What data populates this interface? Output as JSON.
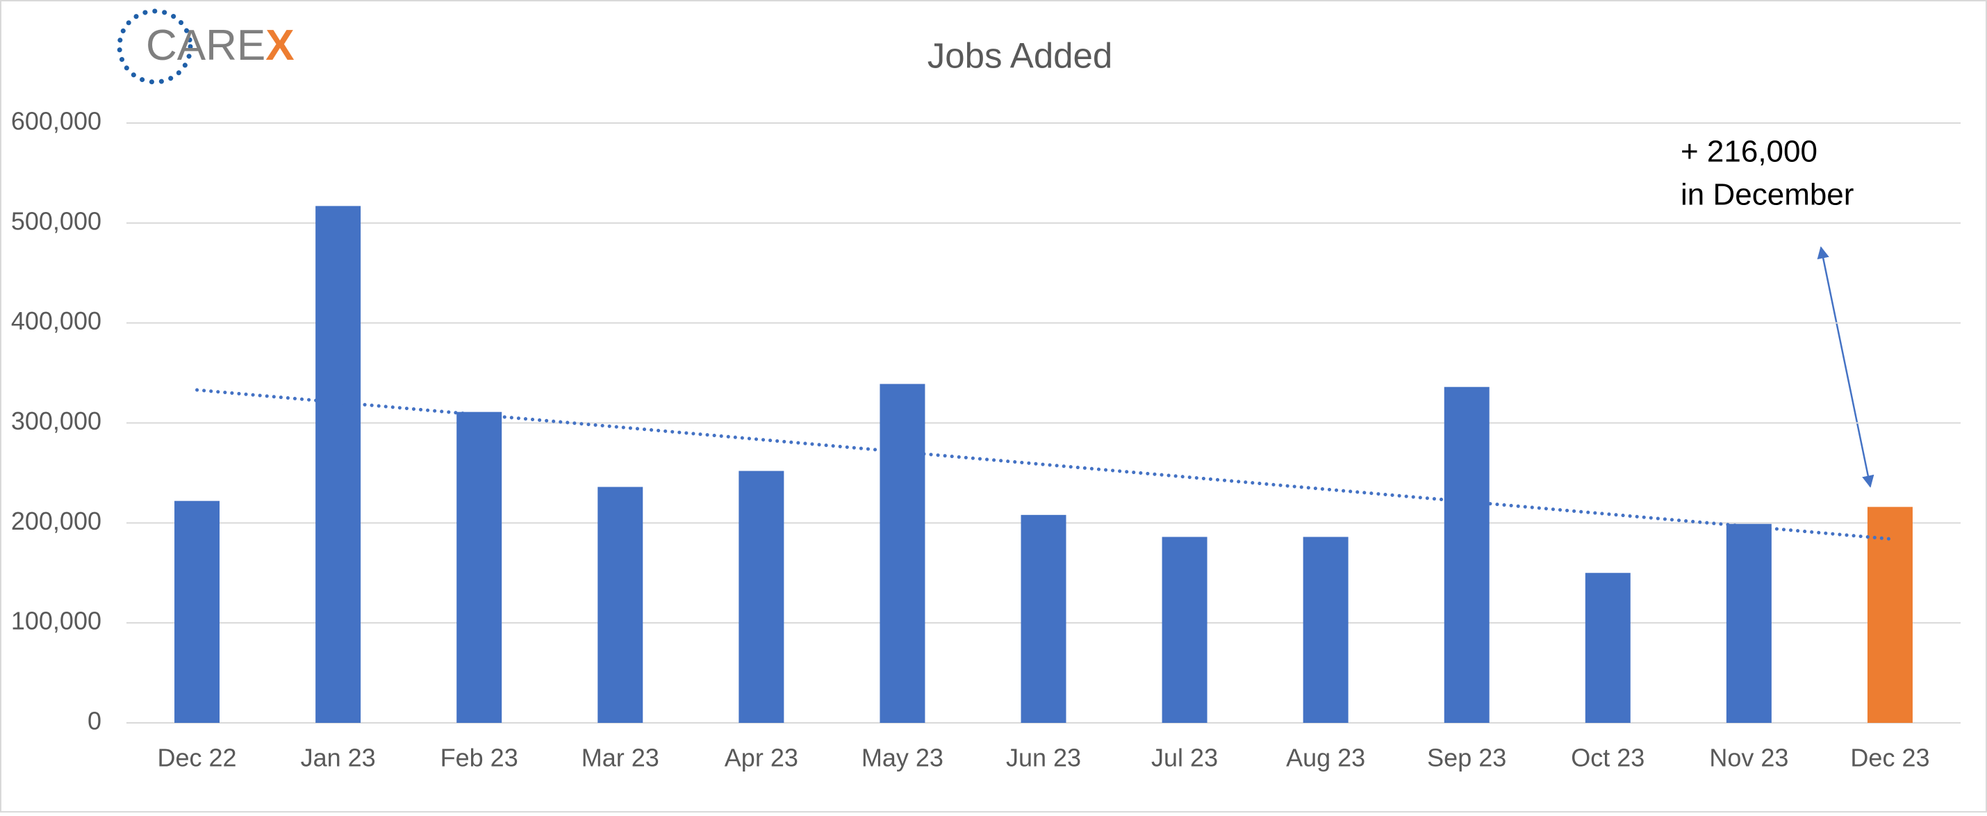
{
  "logo": {
    "text": [
      "CARE",
      "X"
    ]
  },
  "chart_data": {
    "type": "bar",
    "title": "Jobs Added",
    "categories": [
      "Dec 22",
      "Jan 23",
      "Feb 23",
      "Mar 23",
      "Apr 23",
      "May 23",
      "Jun 23",
      "Jul 23",
      "Aug 23",
      "Sep 23",
      "Oct 23",
      "Nov 23",
      "Dec 23"
    ],
    "values": [
      222000,
      517000,
      311000,
      236000,
      252000,
      339000,
      208000,
      186000,
      186000,
      336000,
      150000,
      199000,
      216000
    ],
    "colors": [
      "#4472c4",
      "#4472c4",
      "#4472c4",
      "#4472c4",
      "#4472c4",
      "#4472c4",
      "#4472c4",
      "#4472c4",
      "#4472c4",
      "#4472c4",
      "#4472c4",
      "#4472c4",
      "#ed7d31"
    ],
    "trendline": {
      "values": [
        333000,
        184000
      ],
      "color": "#4472c4"
    },
    "ylim": [
      0,
      600000
    ],
    "yticks": [
      0,
      {
        "value": 100000,
        "label": "100,000"
      },
      {
        "value": 200000,
        "label": "200,000"
      },
      {
        "value": 300000,
        "label": "300,000"
      },
      {
        "value": 400000,
        "label": "400,000"
      },
      {
        "value": 500000,
        "label": "500,000"
      },
      {
        "value": 600000,
        "label": "600,000"
      }
    ],
    "grid": true,
    "annotation": [
      "+ 216,000",
      "in December"
    ]
  }
}
